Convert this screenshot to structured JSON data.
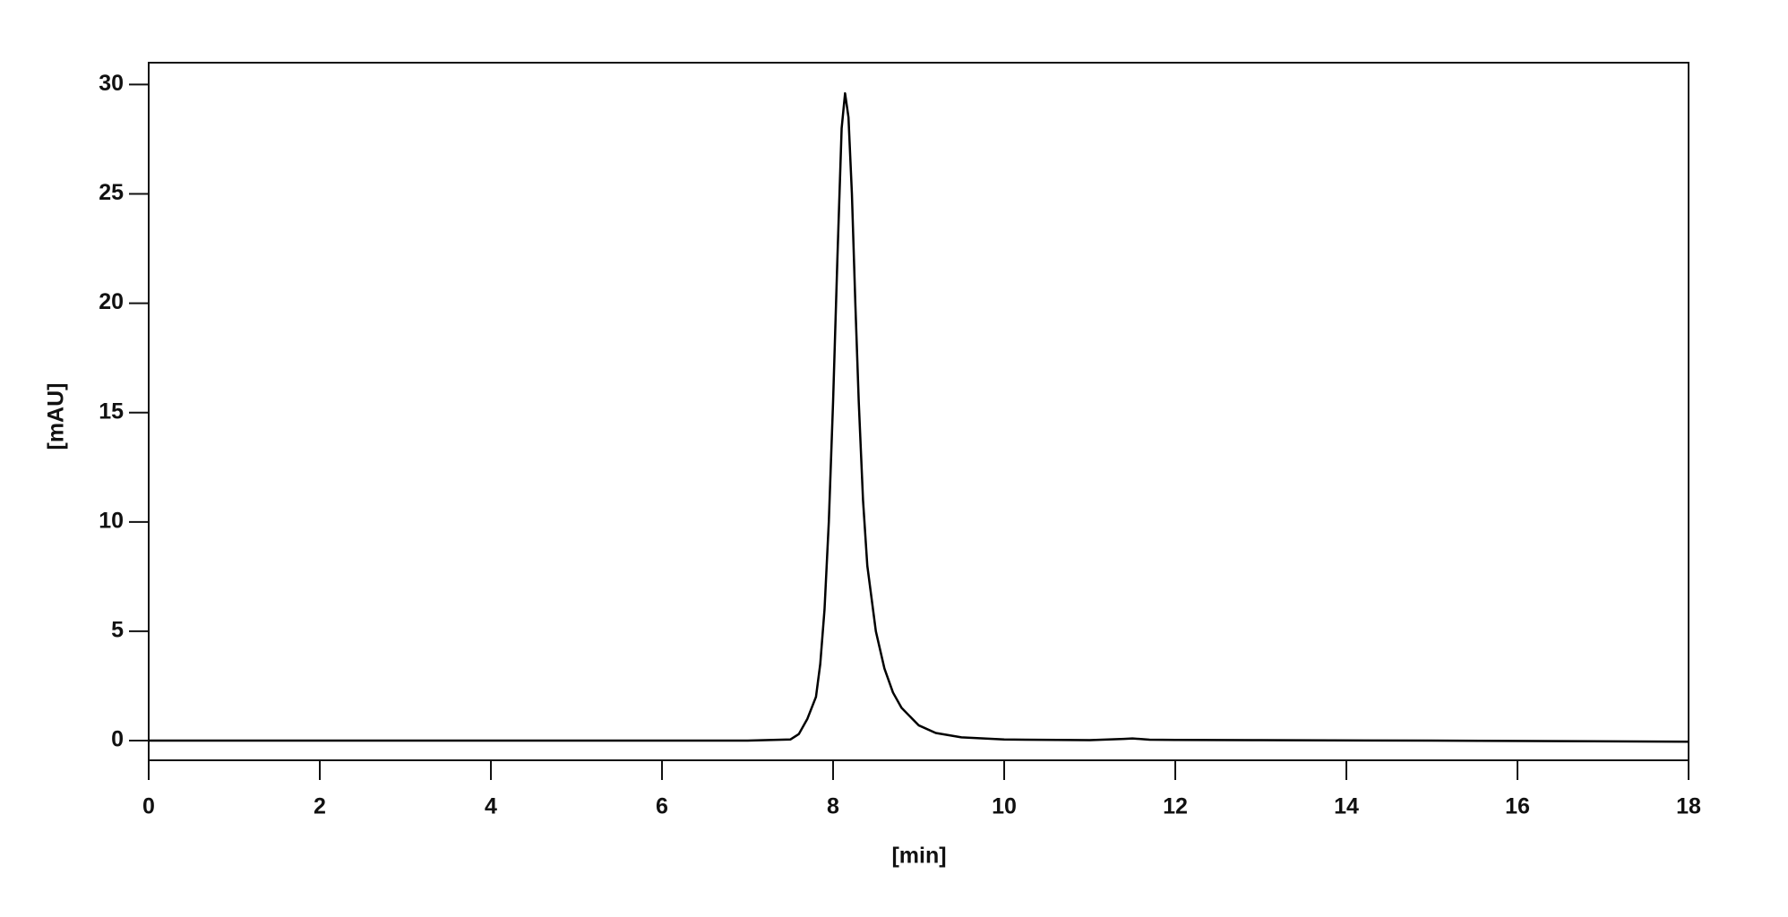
{
  "chart_data": {
    "type": "line",
    "x_label": "[min]",
    "y_label": "[mAU]",
    "x": [
      0,
      7.0,
      7.5,
      7.6,
      7.7,
      7.8,
      7.85,
      7.9,
      7.95,
      8.0,
      8.05,
      8.1,
      8.14,
      8.18,
      8.22,
      8.26,
      8.3,
      8.35,
      8.4,
      8.5,
      8.6,
      8.7,
      8.8,
      9.0,
      9.2,
      9.5,
      10,
      11,
      11.4,
      11.5,
      11.7,
      12,
      13,
      15,
      18
    ],
    "values": [
      0,
      0,
      0.05,
      0.3,
      1.0,
      2.0,
      3.5,
      6,
      10,
      15.5,
      22,
      28,
      29.6,
      28.5,
      25,
      20,
      15.5,
      11,
      8,
      5,
      3.3,
      2.2,
      1.5,
      0.7,
      0.35,
      0.15,
      0.05,
      0.02,
      0.08,
      0.1,
      0.04,
      0.03,
      0.02,
      0,
      -0.05
    ],
    "color": "#000000",
    "xlim": [
      0,
      18
    ],
    "xticks": [
      0,
      2,
      4,
      6,
      8,
      10,
      12,
      14,
      16,
      18
    ],
    "ylim": [
      -0.9,
      31
    ],
    "yticks": [
      0,
      5,
      10,
      15,
      20,
      25,
      30
    ],
    "grid": false
  }
}
